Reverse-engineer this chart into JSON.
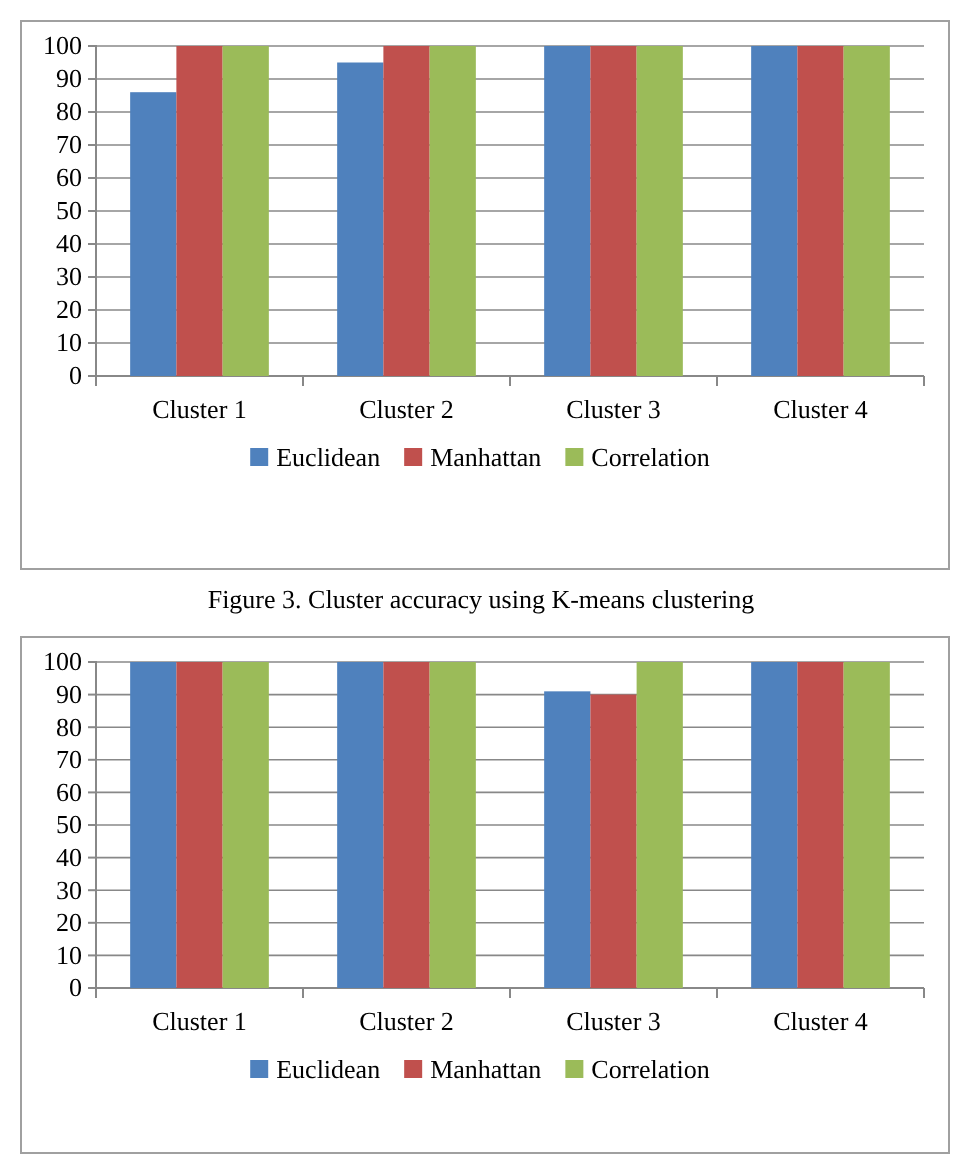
{
  "chart_data": [
    {
      "type": "bar",
      "categories": [
        "Cluster 1",
        "Cluster 2",
        "Cluster 3",
        "Cluster 4"
      ],
      "series": [
        {
          "name": "Euclidean",
          "color": "#4f81bd",
          "values": [
            86,
            95,
            100,
            100
          ]
        },
        {
          "name": "Manhattan",
          "color": "#c0504d",
          "values": [
            100,
            100,
            100,
            100
          ]
        },
        {
          "name": "Correlation",
          "color": "#9bbb59",
          "values": [
            100,
            100,
            100,
            100
          ]
        }
      ],
      "ylim": [
        0,
        100
      ],
      "yticks": [
        0,
        10,
        20,
        30,
        40,
        50,
        60,
        70,
        80,
        90,
        100
      ],
      "grid": "y",
      "legend": "bottom",
      "annotations": [
        "Figure 3.    Cluster accuracy using K-means clustering"
      ]
    },
    {
      "type": "bar",
      "categories": [
        "Cluster 1",
        "Cluster 2",
        "Cluster 3",
        "Cluster 4"
      ],
      "series": [
        {
          "name": "Euclidean",
          "color": "#4f81bd",
          "values": [
            100,
            100,
            91,
            100
          ]
        },
        {
          "name": "Manhattan",
          "color": "#c0504d",
          "values": [
            100,
            100,
            90,
            100
          ]
        },
        {
          "name": "Correlation",
          "color": "#9bbb59",
          "values": [
            100,
            100,
            100,
            100
          ]
        }
      ],
      "ylim": [
        0,
        100
      ],
      "yticks": [
        0,
        10,
        20,
        30,
        40,
        50,
        60,
        70,
        80,
        90,
        100
      ],
      "grid": "y",
      "legend": "bottom"
    }
  ]
}
